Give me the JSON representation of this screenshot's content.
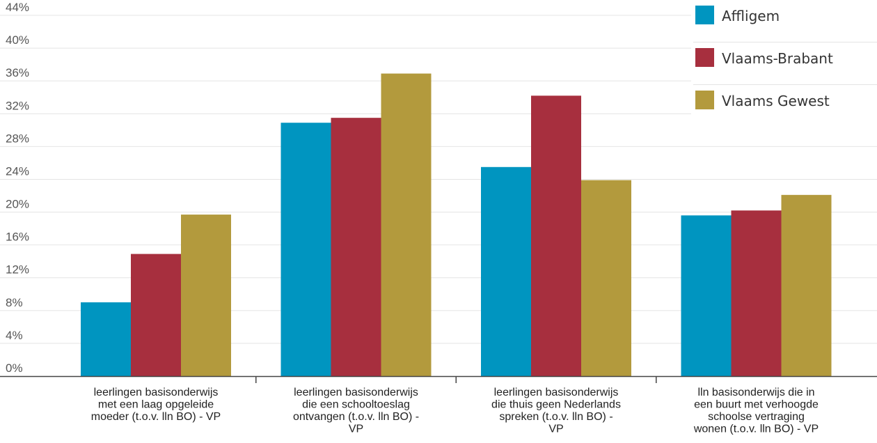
{
  "chart_data": {
    "type": "bar",
    "categories": [
      [
        "leerlingen basisonderwijs",
        "met een laag opgeleide",
        "moeder (t.o.v. lln BO) - VP"
      ],
      [
        "leerlingen basisonderwijs",
        "die een schooltoeslag",
        "ontvangen (t.o.v. lln BO) -",
        "VP"
      ],
      [
        "leerlingen basisonderwijs",
        "die thuis geen Nederlands",
        "spreken (t.o.v. lln BO) -",
        "VP"
      ],
      [
        "lln basisonderwijs die in",
        "een buurt met verhoogde",
        "schoolse vertraging",
        "wonen (t.o.v. lln BO) - VP"
      ]
    ],
    "series": [
      {
        "name": "Affligem",
        "color": "#0095c0",
        "values": [
          9.0,
          30.9,
          25.5,
          19.6
        ]
      },
      {
        "name": "Vlaams-Brabant",
        "color": "#a72f3e",
        "values": [
          14.9,
          31.5,
          34.2,
          20.2
        ]
      },
      {
        "name": "Vlaams Gewest",
        "color": "#b39a3d",
        "values": [
          19.7,
          36.9,
          23.9,
          22.1
        ]
      }
    ],
    "yticks": [
      "0%",
      "4%",
      "8%",
      "12%",
      "16%",
      "20%",
      "24%",
      "28%",
      "32%",
      "36%",
      "40%",
      "44%"
    ],
    "ylim": [
      0,
      44
    ],
    "grid": true,
    "legend_position": "top-right"
  }
}
